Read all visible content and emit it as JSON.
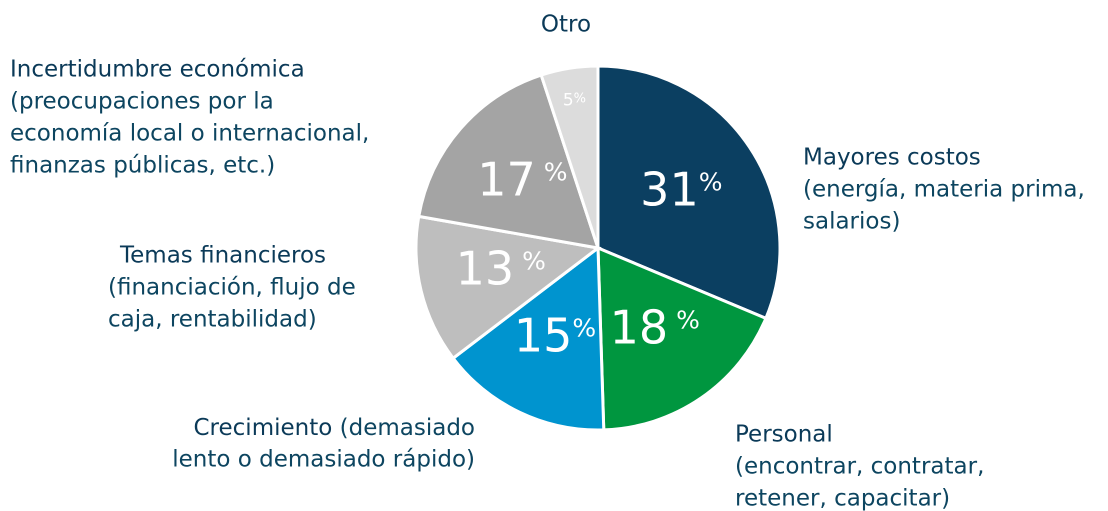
{
  "chart_data": {
    "type": "pie",
    "categories": [
      "Mayores costos",
      "Personal",
      "Crecimiento",
      "Temas financieros",
      "Incertidumbre económica",
      "Otro"
    ],
    "descriptions": [
      [
        "(energía, materia prima,",
        "salarios)"
      ],
      [
        "(encontrar, contratar,",
        "retener, capacitar)"
      ],
      [
        "(demasiado",
        "lento o demasiado rápido)"
      ],
      [
        "(financiación, flujo de",
        "caja, rentabilidad)"
      ],
      [
        "(preocupaciones por la",
        "economía local o internacional,",
        "finanzas públicas, etc.)"
      ],
      []
    ],
    "values": [
      31,
      18,
      15,
      13,
      17,
      5
    ],
    "value_labels": [
      "31%",
      "18 %",
      "15%",
      "13 %",
      "17 %",
      "5%"
    ],
    "colors": [
      "#0b3f61",
      "#00963f",
      "#0094cf",
      "#bebebe",
      "#a4a4a4",
      "#dcdcdc"
    ]
  }
}
